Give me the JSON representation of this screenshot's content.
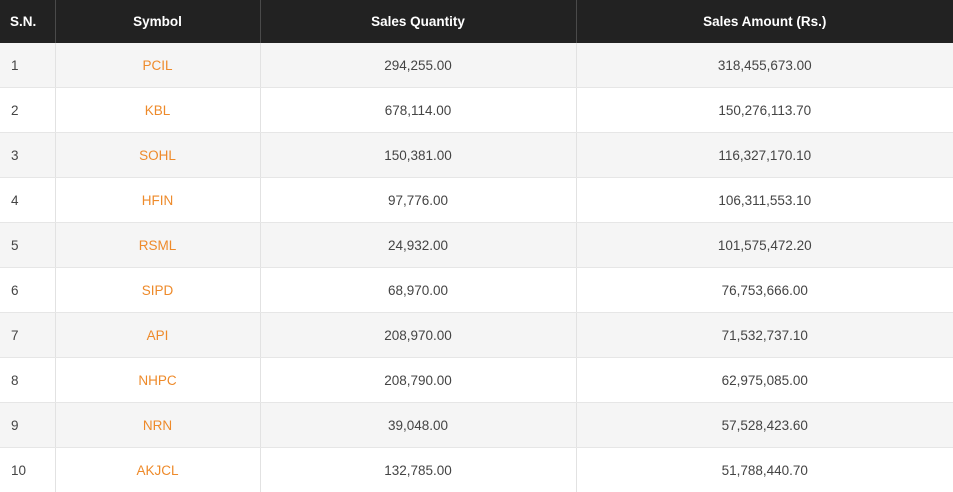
{
  "table": {
    "headers": {
      "sn": "S.N.",
      "symbol": "Symbol",
      "quantity": "Sales Quantity",
      "amount": "Sales Amount (Rs.)"
    },
    "rows": [
      {
        "sn": "1",
        "symbol": "PCIL",
        "quantity": "294,255.00",
        "amount": "318,455,673.00"
      },
      {
        "sn": "2",
        "symbol": "KBL",
        "quantity": "678,114.00",
        "amount": "150,276,113.70"
      },
      {
        "sn": "3",
        "symbol": "SOHL",
        "quantity": "150,381.00",
        "amount": "116,327,170.10"
      },
      {
        "sn": "4",
        "symbol": "HFIN",
        "quantity": "97,776.00",
        "amount": "106,311,553.10"
      },
      {
        "sn": "5",
        "symbol": "RSML",
        "quantity": "24,932.00",
        "amount": "101,575,472.20"
      },
      {
        "sn": "6",
        "symbol": "SIPD",
        "quantity": "68,970.00",
        "amount": "76,753,666.00"
      },
      {
        "sn": "7",
        "symbol": "API",
        "quantity": "208,970.00",
        "amount": "71,532,737.10"
      },
      {
        "sn": "8",
        "symbol": "NHPC",
        "quantity": "208,790.00",
        "amount": "62,975,085.00"
      },
      {
        "sn": "9",
        "symbol": "NRN",
        "quantity": "39,048.00",
        "amount": "57,528,423.60"
      },
      {
        "sn": "10",
        "symbol": "AKJCL",
        "quantity": "132,785.00",
        "amount": "51,788,440.70"
      }
    ]
  },
  "colors": {
    "header_bg": "#222222",
    "symbol_link": "#ee8a2a",
    "row_alt": "#f5f5f5"
  }
}
